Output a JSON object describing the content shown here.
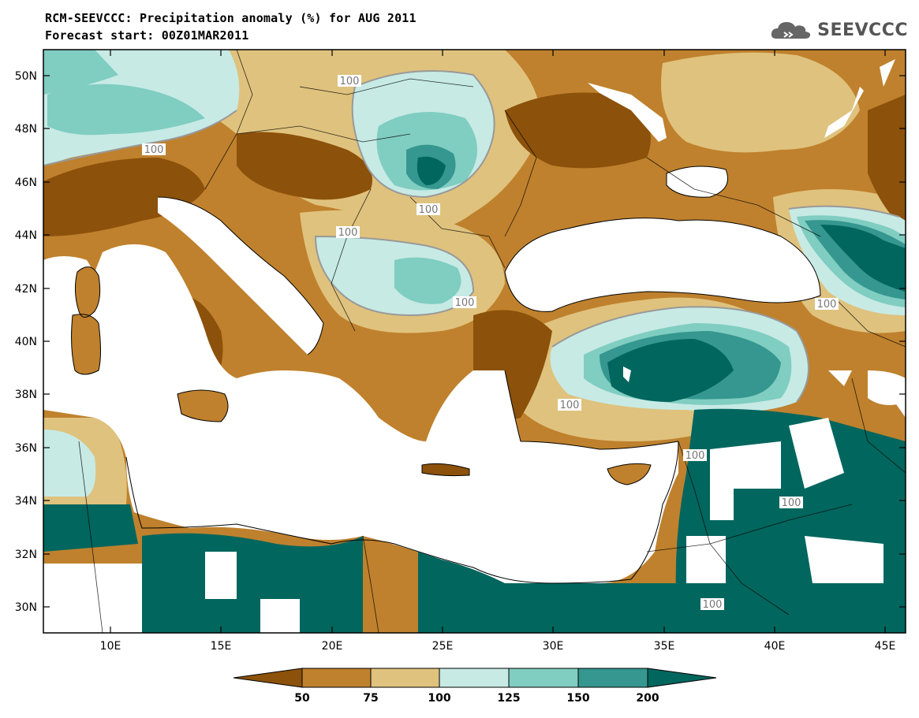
{
  "header": {
    "title_line1": "RCM-SEEVCCC: Precipitation anomaly (%) for AUG 2011",
    "title_line2": "Forecast start: 00Z01MAR2011",
    "logo_text": "SEEVCCC"
  },
  "map": {
    "lat_labels": [
      "50N",
      "48N",
      "46N",
      "44N",
      "42N",
      "40N",
      "38N",
      "36N",
      "34N",
      "32N",
      "30N"
    ],
    "lon_labels": [
      "10E",
      "15E",
      "20E",
      "25E",
      "30E",
      "35E",
      "40E",
      "45E"
    ],
    "contour_label": "100",
    "colors": {
      "land_frame": "#000000",
      "sea": "#ffffff",
      "lt50": "#8c510a",
      "50_75": "#bf812d",
      "75_100": "#dfc27d",
      "100_125": "#c7eae5",
      "125_150": "#80cdc1",
      "150_200": "#35978f",
      "gt200": "#01665e"
    }
  },
  "colorbar": {
    "labels": [
      "50",
      "75",
      "100",
      "125",
      "150",
      "200"
    ]
  }
}
